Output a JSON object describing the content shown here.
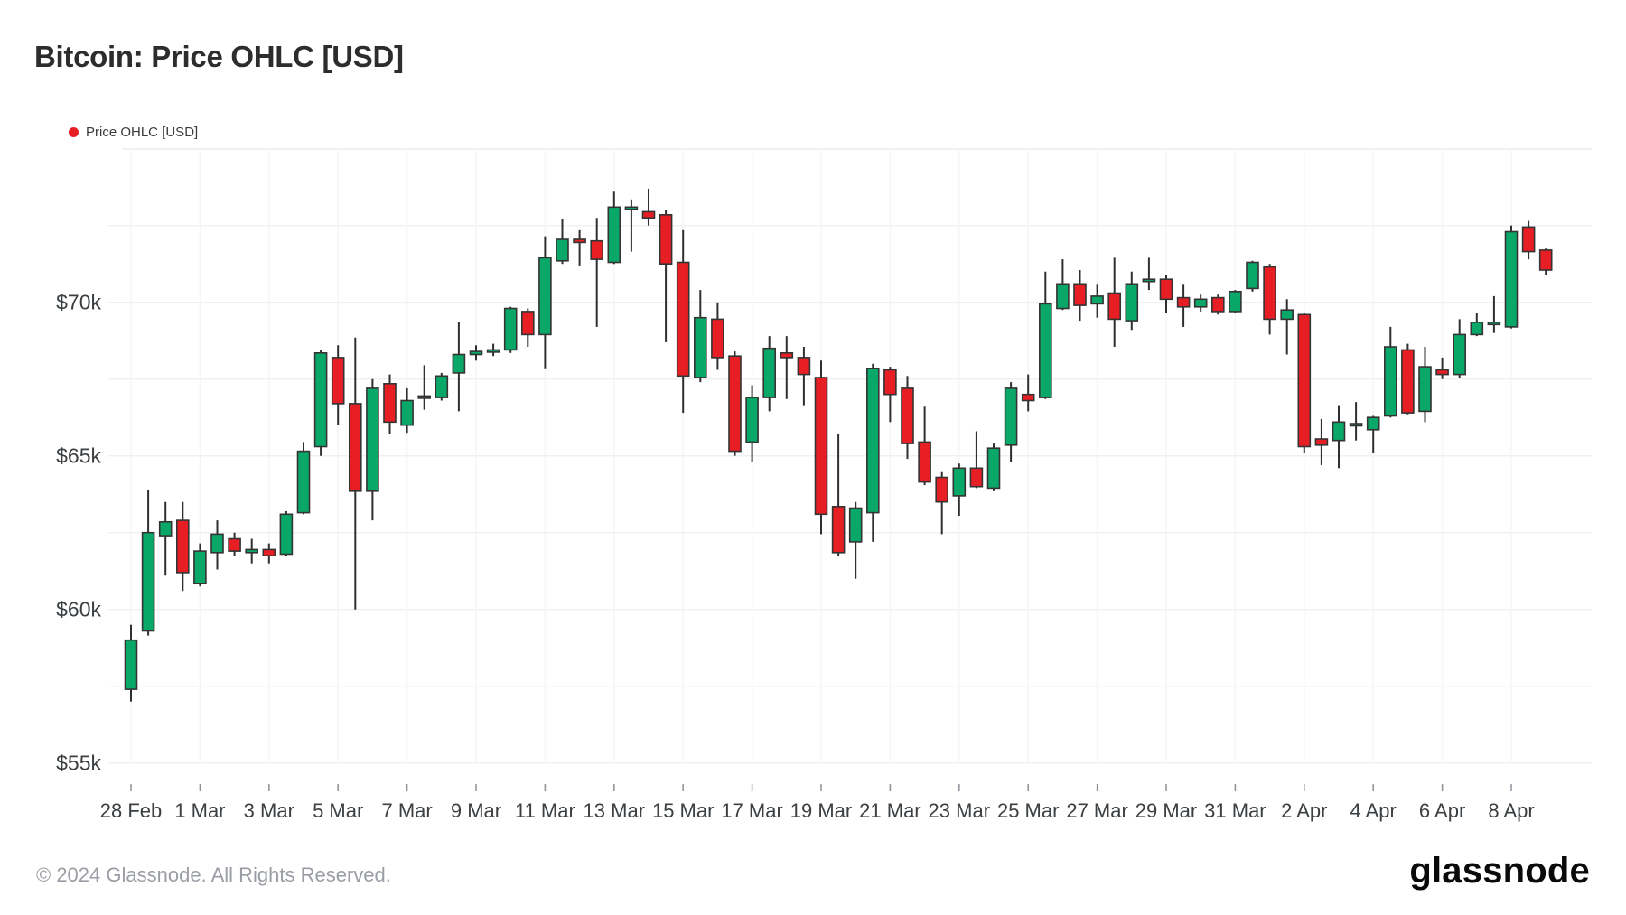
{
  "header": {
    "title": "Bitcoin: Price OHLC [USD]"
  },
  "legend": {
    "label": "Price OHLC [USD]",
    "marker_color": "#e81e25"
  },
  "footer": {
    "copyright": "© 2024 Glassnode. All Rights Reserved.",
    "brand_logo_text": "glassnode"
  },
  "chart_data": {
    "type": "candlestick",
    "title": "Bitcoin: Price OHLC [USD]",
    "unit": "USD, thousands",
    "interval": "12h",
    "grid": true,
    "legend_position": "top-left",
    "ylim": [
      55,
      74.6
    ],
    "y_gridlines": [
      72.5,
      70,
      67.5,
      65,
      62.5,
      60,
      57.5,
      55
    ],
    "y_ticks": [
      {
        "value": 70,
        "label": "$70k"
      },
      {
        "value": 65,
        "label": "$65k"
      },
      {
        "value": 60,
        "label": "$60k"
      },
      {
        "value": 55,
        "label": "$55k"
      }
    ],
    "x_ticks": [
      "28 Feb",
      "1 Mar",
      "3 Mar",
      "5 Mar",
      "7 Mar",
      "9 Mar",
      "11 Mar",
      "13 Mar",
      "15 Mar",
      "17 Mar",
      "19 Mar",
      "21 Mar",
      "23 Mar",
      "25 Mar",
      "27 Mar",
      "29 Mar",
      "31 Mar",
      "2 Apr",
      "4 Apr",
      "6 Apr",
      "8 Apr"
    ],
    "colors": {
      "up": "#0aa868",
      "down": "#e81e25",
      "outline": "#343434",
      "wick": "#2f2f2f",
      "grid": "#f0f0f2"
    },
    "candles": [
      {
        "t": "28 Feb 00:00",
        "o": 57.4,
        "h": 59.5,
        "l": 57.0,
        "c": 59.0
      },
      {
        "t": "28 Feb 12:00",
        "o": 59.3,
        "h": 63.9,
        "l": 59.15,
        "c": 62.5
      },
      {
        "t": "29 Feb 00:00",
        "o": 62.4,
        "h": 63.5,
        "l": 61.1,
        "c": 62.85
      },
      {
        "t": "29 Feb 12:00",
        "o": 62.9,
        "h": 63.5,
        "l": 60.6,
        "c": 61.2
      },
      {
        "t": "1 Mar 00:00",
        "o": 60.85,
        "h": 62.15,
        "l": 60.75,
        "c": 61.9
      },
      {
        "t": "1 Mar 12:00",
        "o": 61.85,
        "h": 62.9,
        "l": 61.3,
        "c": 62.45
      },
      {
        "t": "2 Mar 00:00",
        "o": 62.3,
        "h": 62.5,
        "l": 61.75,
        "c": 61.9
      },
      {
        "t": "2 Mar 12:00",
        "o": 61.85,
        "h": 62.3,
        "l": 61.5,
        "c": 61.95
      },
      {
        "t": "3 Mar 00:00",
        "o": 61.95,
        "h": 62.15,
        "l": 61.5,
        "c": 61.75
      },
      {
        "t": "3 Mar 12:00",
        "o": 61.8,
        "h": 63.2,
        "l": 61.75,
        "c": 63.1
      },
      {
        "t": "4 Mar 00:00",
        "o": 63.15,
        "h": 65.45,
        "l": 63.1,
        "c": 65.15
      },
      {
        "t": "4 Mar 12:00",
        "o": 65.3,
        "h": 68.45,
        "l": 65.0,
        "c": 68.35
      },
      {
        "t": "5 Mar 00:00",
        "o": 68.2,
        "h": 68.6,
        "l": 66.0,
        "c": 66.7
      },
      {
        "t": "5 Mar 12:00",
        "o": 66.7,
        "h": 68.85,
        "l": 60.0,
        "c": 63.85
      },
      {
        "t": "6 Mar 00:00",
        "o": 63.85,
        "h": 67.5,
        "l": 62.9,
        "c": 67.2
      },
      {
        "t": "6 Mar 12:00",
        "o": 67.35,
        "h": 67.65,
        "l": 65.7,
        "c": 66.1
      },
      {
        "t": "7 Mar 00:00",
        "o": 66.0,
        "h": 67.2,
        "l": 65.75,
        "c": 66.8
      },
      {
        "t": "7 Mar 12:00",
        "o": 66.9,
        "h": 67.95,
        "l": 66.5,
        "c": 66.95
      },
      {
        "t": "8 Mar 00:00",
        "o": 66.9,
        "h": 67.7,
        "l": 66.8,
        "c": 67.6
      },
      {
        "t": "8 Mar 12:00",
        "o": 67.7,
        "h": 69.35,
        "l": 66.45,
        "c": 68.3
      },
      {
        "t": "9 Mar 00:00",
        "o": 68.3,
        "h": 68.6,
        "l": 68.1,
        "c": 68.4
      },
      {
        "t": "9 Mar 12:00",
        "o": 68.4,
        "h": 68.65,
        "l": 68.25,
        "c": 68.45
      },
      {
        "t": "10 Mar 00:00",
        "o": 68.45,
        "h": 69.85,
        "l": 68.35,
        "c": 69.8
      },
      {
        "t": "10 Mar 12:00",
        "o": 69.7,
        "h": 69.8,
        "l": 68.55,
        "c": 68.95
      },
      {
        "t": "11 Mar 00:00",
        "o": 68.95,
        "h": 72.15,
        "l": 67.85,
        "c": 71.45
      },
      {
        "t": "11 Mar 12:00",
        "o": 71.35,
        "h": 72.7,
        "l": 71.25,
        "c": 72.05
      },
      {
        "t": "12 Mar 00:00",
        "o": 72.05,
        "h": 72.35,
        "l": 71.2,
        "c": 71.95
      },
      {
        "t": "12 Mar 12:00",
        "o": 72.0,
        "h": 72.75,
        "l": 69.2,
        "c": 71.4
      },
      {
        "t": "13 Mar 00:00",
        "o": 71.3,
        "h": 73.6,
        "l": 71.25,
        "c": 73.1
      },
      {
        "t": "13 Mar 12:00",
        "o": 73.05,
        "h": 73.35,
        "l": 71.65,
        "c": 73.1
      },
      {
        "t": "14 Mar 00:00",
        "o": 72.95,
        "h": 73.7,
        "l": 72.5,
        "c": 72.75
      },
      {
        "t": "14 Mar 12:00",
        "o": 72.85,
        "h": 73.0,
        "l": 68.7,
        "c": 71.25
      },
      {
        "t": "15 Mar 00:00",
        "o": 71.3,
        "h": 72.35,
        "l": 66.4,
        "c": 67.6
      },
      {
        "t": "15 Mar 12:00",
        "o": 67.55,
        "h": 70.4,
        "l": 67.4,
        "c": 69.5
      },
      {
        "t": "16 Mar 00:00",
        "o": 69.45,
        "h": 70.0,
        "l": 67.8,
        "c": 68.2
      },
      {
        "t": "16 Mar 12:00",
        "o": 68.25,
        "h": 68.4,
        "l": 65.0,
        "c": 65.15
      },
      {
        "t": "17 Mar 00:00",
        "o": 65.45,
        "h": 67.3,
        "l": 64.8,
        "c": 66.9
      },
      {
        "t": "17 Mar 12:00",
        "o": 66.9,
        "h": 68.9,
        "l": 66.45,
        "c": 68.5
      },
      {
        "t": "18 Mar 00:00",
        "o": 68.35,
        "h": 68.9,
        "l": 66.85,
        "c": 68.2
      },
      {
        "t": "18 Mar 12:00",
        "o": 68.2,
        "h": 68.55,
        "l": 66.65,
        "c": 67.65
      },
      {
        "t": "19 Mar 00:00",
        "o": 67.55,
        "h": 68.1,
        "l": 62.45,
        "c": 63.1
      },
      {
        "t": "19 Mar 12:00",
        "o": 63.35,
        "h": 65.7,
        "l": 61.75,
        "c": 61.85
      },
      {
        "t": "20 Mar 00:00",
        "o": 62.2,
        "h": 63.5,
        "l": 61.0,
        "c": 63.3
      },
      {
        "t": "20 Mar 12:00",
        "o": 63.15,
        "h": 68.0,
        "l": 62.2,
        "c": 67.85
      },
      {
        "t": "21 Mar 00:00",
        "o": 67.8,
        "h": 67.9,
        "l": 66.1,
        "c": 67.0
      },
      {
        "t": "21 Mar 12:00",
        "o": 67.2,
        "h": 67.6,
        "l": 64.9,
        "c": 65.4
      },
      {
        "t": "22 Mar 00:00",
        "o": 65.45,
        "h": 66.6,
        "l": 64.05,
        "c": 64.15
      },
      {
        "t": "22 Mar 12:00",
        "o": 64.3,
        "h": 64.5,
        "l": 62.45,
        "c": 63.5
      },
      {
        "t": "23 Mar 00:00",
        "o": 63.7,
        "h": 64.75,
        "l": 63.05,
        "c": 64.6
      },
      {
        "t": "23 Mar 12:00",
        "o": 64.6,
        "h": 65.8,
        "l": 63.95,
        "c": 64.0
      },
      {
        "t": "24 Mar 00:00",
        "o": 63.95,
        "h": 65.4,
        "l": 63.85,
        "c": 65.25
      },
      {
        "t": "24 Mar 12:00",
        "o": 65.35,
        "h": 67.4,
        "l": 64.8,
        "c": 67.2
      },
      {
        "t": "25 Mar 00:00",
        "o": 67.0,
        "h": 67.65,
        "l": 66.45,
        "c": 66.8
      },
      {
        "t": "25 Mar 12:00",
        "o": 66.9,
        "h": 71.0,
        "l": 66.85,
        "c": 69.95
      },
      {
        "t": "26 Mar 00:00",
        "o": 69.8,
        "h": 71.4,
        "l": 69.75,
        "c": 70.6
      },
      {
        "t": "26 Mar 12:00",
        "o": 70.6,
        "h": 71.05,
        "l": 69.4,
        "c": 69.9
      },
      {
        "t": "27 Mar 00:00",
        "o": 69.95,
        "h": 70.6,
        "l": 69.5,
        "c": 70.2
      },
      {
        "t": "27 Mar 12:00",
        "o": 70.3,
        "h": 71.45,
        "l": 68.55,
        "c": 69.45
      },
      {
        "t": "28 Mar 00:00",
        "o": 69.4,
        "h": 71.0,
        "l": 69.1,
        "c": 70.6
      },
      {
        "t": "28 Mar 12:00",
        "o": 70.7,
        "h": 71.45,
        "l": 70.4,
        "c": 70.75
      },
      {
        "t": "29 Mar 00:00",
        "o": 70.75,
        "h": 70.9,
        "l": 69.65,
        "c": 70.1
      },
      {
        "t": "29 Mar 12:00",
        "o": 70.15,
        "h": 70.6,
        "l": 69.2,
        "c": 69.85
      },
      {
        "t": "30 Mar 00:00",
        "o": 69.85,
        "h": 70.25,
        "l": 69.7,
        "c": 70.1
      },
      {
        "t": "30 Mar 12:00",
        "o": 70.15,
        "h": 70.25,
        "l": 69.6,
        "c": 69.7
      },
      {
        "t": "31 Mar 00:00",
        "o": 69.7,
        "h": 70.4,
        "l": 69.65,
        "c": 70.35
      },
      {
        "t": "31 Mar 12:00",
        "o": 70.45,
        "h": 71.35,
        "l": 70.35,
        "c": 71.3
      },
      {
        "t": "1 Apr 00:00",
        "o": 71.15,
        "h": 71.25,
        "l": 68.95,
        "c": 69.45
      },
      {
        "t": "1 Apr 12:00",
        "o": 69.45,
        "h": 70.1,
        "l": 68.3,
        "c": 69.75
      },
      {
        "t": "2 Apr 00:00",
        "o": 69.6,
        "h": 69.65,
        "l": 65.1,
        "c": 65.3
      },
      {
        "t": "2 Apr 12:00",
        "o": 65.55,
        "h": 66.2,
        "l": 64.7,
        "c": 65.35
      },
      {
        "t": "3 Apr 00:00",
        "o": 65.5,
        "h": 66.65,
        "l": 64.6,
        "c": 66.1
      },
      {
        "t": "3 Apr 12:00",
        "o": 66.0,
        "h": 66.75,
        "l": 65.5,
        "c": 66.05
      },
      {
        "t": "4 Apr 00:00",
        "o": 65.85,
        "h": 66.3,
        "l": 65.1,
        "c": 66.25
      },
      {
        "t": "4 Apr 12:00",
        "o": 66.3,
        "h": 69.2,
        "l": 66.25,
        "c": 68.55
      },
      {
        "t": "5 Apr 00:00",
        "o": 68.45,
        "h": 68.65,
        "l": 66.35,
        "c": 66.4
      },
      {
        "t": "5 Apr 12:00",
        "o": 66.45,
        "h": 68.55,
        "l": 66.1,
        "c": 67.9
      },
      {
        "t": "6 Apr 00:00",
        "o": 67.8,
        "h": 68.2,
        "l": 67.5,
        "c": 67.65
      },
      {
        "t": "6 Apr 12:00",
        "o": 67.65,
        "h": 69.45,
        "l": 67.55,
        "c": 68.95
      },
      {
        "t": "7 Apr 00:00",
        "o": 68.95,
        "h": 69.65,
        "l": 68.9,
        "c": 69.35
      },
      {
        "t": "7 Apr 12:00",
        "o": 69.3,
        "h": 70.2,
        "l": 69.0,
        "c": 69.35
      },
      {
        "t": "8 Apr 00:00",
        "o": 69.2,
        "h": 72.5,
        "l": 69.15,
        "c": 72.3
      },
      {
        "t": "8 Apr 12:00",
        "o": 72.45,
        "h": 72.65,
        "l": 71.4,
        "c": 71.65
      },
      {
        "t": "9 Apr 00:00",
        "o": 71.7,
        "h": 71.75,
        "l": 70.9,
        "c": 71.05
      }
    ]
  }
}
